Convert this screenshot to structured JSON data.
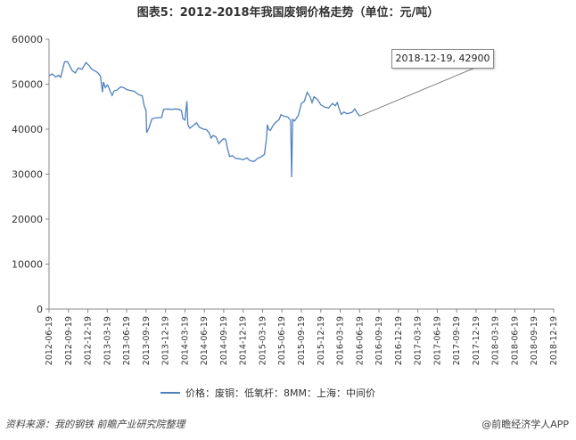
{
  "title": "图表5：2012-2018年我国废铜价格走势（单位：元/吨）",
  "legend_label": "价格：废铜：低氧杆：8MM：上海：中间价",
  "callout": "2018-12-19, 42900",
  "source": "资料来源：我的钢铁  前瞻产业研究院整理",
  "brand": "@前瞻经济学人APP",
  "colors": {
    "line": "#4f81bd",
    "axis": "#888888"
  },
  "chart_data": {
    "type": "line",
    "ylim": [
      0,
      60000
    ],
    "yticks": [
      0,
      10000,
      20000,
      30000,
      40000,
      50000,
      60000
    ],
    "xticks": [
      "2012-06-19",
      "2012-09-19",
      "2012-12-19",
      "2013-03-19",
      "2013-06-19",
      "2013-09-19",
      "2013-12-19",
      "2014-03-19",
      "2014-06-19",
      "2014-09-19",
      "2014-12-19",
      "2015-03-19",
      "2015-06-19",
      "2015-09-19",
      "2015-12-19",
      "2016-03-19",
      "2016-06-19",
      "2016-09-19",
      "2016-12-19",
      "2017-03-19",
      "2017-06-19",
      "2017-09-19",
      "2017-12-19",
      "2018-03-19",
      "2018-06-19",
      "2018-09-19",
      "2018-12-19"
    ],
    "series": [
      {
        "name": "价格：废铜：低氧杆：8MM：上海：中间价",
        "points": [
          [
            0,
            51800
          ],
          [
            0.15,
            52300
          ],
          [
            0.35,
            51600
          ],
          [
            0.5,
            52000
          ],
          [
            0.6,
            51500
          ],
          [
            0.8,
            55000
          ],
          [
            0.95,
            55000
          ],
          [
            1.05,
            54200
          ],
          [
            1.2,
            53000
          ],
          [
            1.35,
            52500
          ],
          [
            1.5,
            53600
          ],
          [
            1.7,
            53300
          ],
          [
            1.9,
            54800
          ],
          [
            2.05,
            54200
          ],
          [
            2.2,
            53300
          ],
          [
            2.35,
            53000
          ],
          [
            2.5,
            52600
          ],
          [
            2.65,
            51800
          ],
          [
            2.75,
            48200
          ],
          [
            2.8,
            50500
          ],
          [
            2.9,
            49200
          ],
          [
            3.0,
            49800
          ],
          [
            3.05,
            49600
          ],
          [
            3.15,
            48400
          ],
          [
            3.25,
            47500
          ],
          [
            3.35,
            48500
          ],
          [
            3.5,
            48700
          ],
          [
            3.7,
            49400
          ],
          [
            3.85,
            49200
          ],
          [
            4.0,
            48800
          ],
          [
            4.2,
            48600
          ],
          [
            4.4,
            48400
          ],
          [
            4.6,
            47700
          ],
          [
            4.8,
            47400
          ],
          [
            4.9,
            45200
          ],
          [
            5.0,
            44100
          ],
          [
            5.03,
            39200
          ],
          [
            5.15,
            40300
          ],
          [
            5.3,
            42300
          ],
          [
            5.5,
            42500
          ],
          [
            5.8,
            42600
          ],
          [
            5.9,
            44400
          ],
          [
            6.1,
            44500
          ],
          [
            6.3,
            44400
          ],
          [
            6.5,
            44500
          ],
          [
            6.7,
            44400
          ],
          [
            6.82,
            44100
          ],
          [
            6.9,
            42300
          ],
          [
            7.0,
            42000
          ],
          [
            7.1,
            46200
          ],
          [
            7.15,
            41000
          ],
          [
            7.25,
            40200
          ],
          [
            7.4,
            40700
          ],
          [
            7.6,
            41400
          ],
          [
            7.75,
            40400
          ],
          [
            7.95,
            40000
          ],
          [
            8.1,
            39900
          ],
          [
            8.25,
            39200
          ],
          [
            8.35,
            38000
          ],
          [
            8.45,
            38600
          ],
          [
            8.6,
            38300
          ],
          [
            8.75,
            36800
          ],
          [
            8.9,
            37500
          ],
          [
            9.0,
            37900
          ],
          [
            9.1,
            37700
          ],
          [
            9.2,
            35600
          ],
          [
            9.3,
            33900
          ],
          [
            9.45,
            34100
          ],
          [
            9.6,
            33500
          ],
          [
            9.8,
            33400
          ],
          [
            10.0,
            33200
          ],
          [
            10.2,
            33600
          ],
          [
            10.35,
            33000
          ],
          [
            10.55,
            32800
          ],
          [
            10.75,
            33500
          ],
          [
            10.95,
            33900
          ],
          [
            11.1,
            34400
          ],
          [
            11.2,
            37800
          ],
          [
            11.25,
            41000
          ],
          [
            11.32,
            39900
          ],
          [
            11.4,
            39700
          ],
          [
            11.55,
            40900
          ],
          [
            11.7,
            41600
          ],
          [
            11.85,
            42100
          ],
          [
            11.95,
            43200
          ],
          [
            12.1,
            42900
          ],
          [
            12.3,
            42700
          ],
          [
            12.45,
            41900
          ],
          [
            12.5,
            29300
          ],
          [
            12.55,
            42200
          ],
          [
            12.65,
            41800
          ],
          [
            12.85,
            43100
          ],
          [
            13.0,
            45700
          ],
          [
            13.15,
            46200
          ],
          [
            13.3,
            48200
          ],
          [
            13.45,
            47200
          ],
          [
            13.55,
            45900
          ],
          [
            13.65,
            47200
          ],
          [
            13.85,
            46500
          ],
          [
            14.0,
            45400
          ],
          [
            14.2,
            44900
          ],
          [
            14.4,
            44700
          ],
          [
            14.6,
            45700
          ],
          [
            14.75,
            45200
          ],
          [
            14.85,
            45900
          ],
          [
            14.95,
            44500
          ],
          [
            15.05,
            43300
          ],
          [
            15.2,
            43800
          ],
          [
            15.35,
            43400
          ],
          [
            15.5,
            43600
          ],
          [
            15.6,
            43700
          ],
          [
            15.75,
            44500
          ],
          [
            15.85,
            43800
          ],
          [
            16.0,
            42900
          ]
        ]
      }
    ]
  }
}
